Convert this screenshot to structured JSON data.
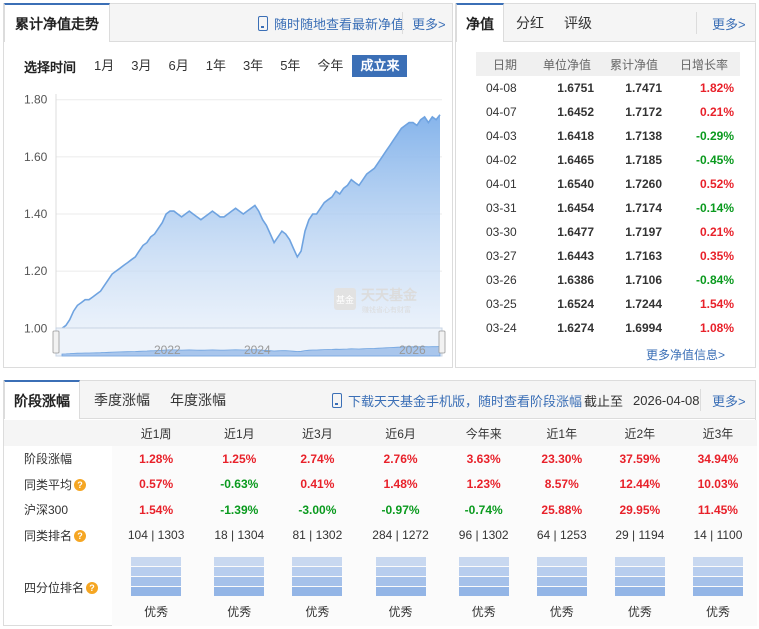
{
  "chart_panel": {
    "tab_title": "累计净值走势",
    "phone_link": "随时随地查看最新净值",
    "more": "更多>",
    "range_label": "选择时间",
    "range_options": [
      "1月",
      "3月",
      "6月",
      "1年",
      "3年",
      "5年",
      "今年",
      "成立来"
    ],
    "range_selected": "成立来",
    "watermark_main": "天天基金",
    "watermark_sub": "赚钱省心有财富",
    "watermark_badge": "基金"
  },
  "chart_data": {
    "type": "area",
    "y_ticks": [
      "1.80",
      "1.60",
      "1.40",
      "1.20",
      "1.00"
    ],
    "ylim": [
      0.98,
      1.82
    ],
    "x_tick_labels": [
      "2022",
      "2024",
      "2026"
    ],
    "series": [
      {
        "values": [
          1.0,
          1.01,
          1.03,
          1.06,
          1.08,
          1.09,
          1.1,
          1.1,
          1.11,
          1.12,
          1.13,
          1.15,
          1.17,
          1.19,
          1.2,
          1.21,
          1.22,
          1.23,
          1.24,
          1.25,
          1.27,
          1.29,
          1.3,
          1.32,
          1.33,
          1.35,
          1.37,
          1.4,
          1.41,
          1.41,
          1.4,
          1.39,
          1.4,
          1.41,
          1.4,
          1.39,
          1.38,
          1.39,
          1.4,
          1.41,
          1.4,
          1.39,
          1.39,
          1.4,
          1.41,
          1.42,
          1.41,
          1.4,
          1.41,
          1.42,
          1.43,
          1.41,
          1.38,
          1.36,
          1.33,
          1.3,
          1.32,
          1.34,
          1.33,
          1.31,
          1.28,
          1.25,
          1.27,
          1.34,
          1.38,
          1.4,
          1.4,
          1.42,
          1.44,
          1.45,
          1.46,
          1.48,
          1.47,
          1.49,
          1.5,
          1.52,
          1.51,
          1.5,
          1.52,
          1.54,
          1.55,
          1.56,
          1.58,
          1.6,
          1.62,
          1.64,
          1.66,
          1.68,
          1.7,
          1.71,
          1.72,
          1.72,
          1.71,
          1.73,
          1.74,
          1.72,
          1.74,
          1.73,
          1.7471
        ]
      }
    ],
    "accent": "#6fa3e0"
  },
  "nav_panel": {
    "tabs": [
      "净值",
      "分红",
      "评级"
    ],
    "active_tab": "净值",
    "more": "更多>",
    "headers": [
      "日期",
      "单位净值",
      "累计净值",
      "日增长率"
    ],
    "rows": [
      {
        "date": "04-08",
        "unit": "1.6751",
        "acc": "1.7471",
        "chg": "1.82%",
        "dir": "up"
      },
      {
        "date": "04-07",
        "unit": "1.6452",
        "acc": "1.7172",
        "chg": "0.21%",
        "dir": "up"
      },
      {
        "date": "04-03",
        "unit": "1.6418",
        "acc": "1.7138",
        "chg": "-0.29%",
        "dir": "down"
      },
      {
        "date": "04-02",
        "unit": "1.6465",
        "acc": "1.7185",
        "chg": "-0.45%",
        "dir": "down"
      },
      {
        "date": "04-01",
        "unit": "1.6540",
        "acc": "1.7260",
        "chg": "0.52%",
        "dir": "up"
      },
      {
        "date": "03-31",
        "unit": "1.6454",
        "acc": "1.7174",
        "chg": "-0.14%",
        "dir": "down"
      },
      {
        "date": "03-30",
        "unit": "1.6477",
        "acc": "1.7197",
        "chg": "0.21%",
        "dir": "up"
      },
      {
        "date": "03-27",
        "unit": "1.6443",
        "acc": "1.7163",
        "chg": "0.35%",
        "dir": "up"
      },
      {
        "date": "03-26",
        "unit": "1.6386",
        "acc": "1.7106",
        "chg": "-0.84%",
        "dir": "down"
      },
      {
        "date": "03-25",
        "unit": "1.6524",
        "acc": "1.7244",
        "chg": "1.54%",
        "dir": "up"
      },
      {
        "date": "03-24",
        "unit": "1.6274",
        "acc": "1.6994",
        "chg": "1.08%",
        "dir": "up"
      }
    ],
    "more_nav": "更多净值信息>"
  },
  "perf_panel": {
    "tabs": [
      "阶段涨幅",
      "季度涨幅",
      "年度涨幅"
    ],
    "active_tab": "阶段涨幅",
    "download_link": "下载天天基金手机版，随时查看阶段涨幅",
    "as_of_label": "截止至",
    "as_of_date": "2026-04-08",
    "more": "更多>",
    "periods": [
      "近1周",
      "近1月",
      "近3月",
      "近6月",
      "今年来",
      "近1年",
      "近2年",
      "近3年"
    ],
    "rows": [
      {
        "label": "阶段涨幅",
        "help": false,
        "values": [
          "1.28%",
          "1.25%",
          "2.74%",
          "2.76%",
          "3.63%",
          "23.30%",
          "37.59%",
          "34.94%"
        ]
      },
      {
        "label": "同类平均",
        "help": true,
        "values": [
          "0.57%",
          "-0.63%",
          "0.41%",
          "1.48%",
          "1.23%",
          "8.57%",
          "12.44%",
          "10.03%"
        ]
      },
      {
        "label": "沪深300",
        "help": false,
        "values": [
          "1.54%",
          "-1.39%",
          "-3.00%",
          "-0.97%",
          "-0.74%",
          "25.88%",
          "29.95%",
          "11.45%"
        ]
      }
    ],
    "rank_label": "同类排名",
    "ranks": [
      "104 | 1303",
      "18 | 1304",
      "81 | 1302",
      "284 | 1272",
      "96 | 1302",
      "64 | 1253",
      "29 | 1194",
      "14 | 1100"
    ],
    "quartile_label": "四分位排名",
    "quartiles": [
      "优秀",
      "优秀",
      "优秀",
      "优秀",
      "优秀",
      "优秀",
      "优秀",
      "优秀"
    ]
  }
}
